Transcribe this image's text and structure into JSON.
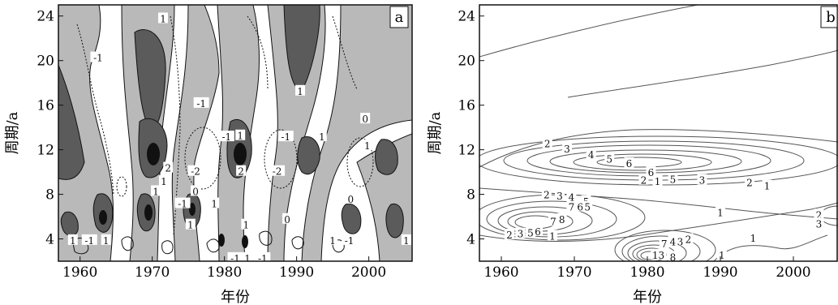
{
  "chart_data": [
    {
      "type": "heatmap",
      "panel_label": "a",
      "xlabel": "年份",
      "ylabel": "周期/a",
      "xlim": [
        1957,
        2006
      ],
      "ylim": [
        2,
        25
      ],
      "xticks": [
        1960,
        1970,
        1980,
        1990,
        2000
      ],
      "yticks": [
        4,
        8,
        12,
        16,
        20,
        24
      ],
      "fill_colors": {
        "neg": "#ffffff",
        "low_pos": "#b9b9b9",
        "high_pos": "#5b5b5b",
        "peak": "#111111"
      },
      "contour_levels": [
        -2,
        -1,
        0,
        1,
        2
      ],
      "contour_labels": [
        {
          "text": "1",
          "x": 1971.5,
          "y": 23.8
        },
        {
          "text": "-1",
          "x": 1962.5,
          "y": 20.3
        },
        {
          "text": "1",
          "x": 1990.5,
          "y": 17.3
        },
        {
          "text": "-1",
          "x": 1976.8,
          "y": 16.2
        },
        {
          "text": "-1",
          "x": 1980.3,
          "y": 13.2
        },
        {
          "text": "1",
          "x": 1982.2,
          "y": 13.3
        },
        {
          "text": "-1",
          "x": 1988.5,
          "y": 13.2
        },
        {
          "text": "1",
          "x": 1993.5,
          "y": 13.2
        },
        {
          "text": "1",
          "x": 1999.8,
          "y": 12.4
        },
        {
          "text": "0",
          "x": 1999.5,
          "y": 14.8
        },
        {
          "text": "2",
          "x": 1972.2,
          "y": 10.4
        },
        {
          "text": "-2",
          "x": 1976.0,
          "y": 10.1
        },
        {
          "text": "2",
          "x": 1982.3,
          "y": 10.1
        },
        {
          "text": "-2",
          "x": 1987.3,
          "y": 10.1
        },
        {
          "text": "1",
          "x": 1971.6,
          "y": 9.2
        },
        {
          "text": "1",
          "x": 1970.5,
          "y": 8.3
        },
        {
          "text": "0",
          "x": 1976.0,
          "y": 8.3
        },
        {
          "text": "-1",
          "x": 1974.2,
          "y": 7.2
        },
        {
          "text": "1",
          "x": 1978.6,
          "y": 7.2
        },
        {
          "text": "0",
          "x": 1997.5,
          "y": 7.6
        },
        {
          "text": "1",
          "x": 1975.3,
          "y": 5.3
        },
        {
          "text": "1",
          "x": 1983.0,
          "y": 5.3
        },
        {
          "text": "0",
          "x": 1988.7,
          "y": 5.8
        },
        {
          "text": "1",
          "x": 1959.0,
          "y": 3.9
        },
        {
          "text": "-1",
          "x": 1961.3,
          "y": 3.9
        },
        {
          "text": "1",
          "x": 1963.6,
          "y": 3.9
        },
        {
          "text": "1",
          "x": 1995.0,
          "y": 3.9
        },
        {
          "text": "-1",
          "x": 1997.3,
          "y": 3.9
        },
        {
          "text": "1",
          "x": 2005.2,
          "y": 3.9
        },
        {
          "text": "-1",
          "x": 1981.5,
          "y": 2.3
        },
        {
          "text": "1",
          "x": 1983.2,
          "y": 2.3
        },
        {
          "text": "-1",
          "x": 1985.3,
          "y": 2.3
        }
      ]
    },
    {
      "type": "heatmap",
      "panel_label": "b",
      "xlabel": "年份",
      "ylabel": "周期/a",
      "xlim": [
        1957,
        2006
      ],
      "ylim": [
        2,
        25
      ],
      "xticks": [
        1960,
        1970,
        1980,
        1990,
        2000
      ],
      "yticks": [
        4,
        8,
        12,
        16,
        20,
        24
      ],
      "contour_levels": [
        1,
        2,
        3,
        4,
        5,
        6,
        7,
        8,
        13
      ],
      "contour_labels": [
        {
          "text": "2",
          "x": 1966.3,
          "y": 12.6
        },
        {
          "text": "3",
          "x": 1969.0,
          "y": 12.1
        },
        {
          "text": "4",
          "x": 1972.3,
          "y": 11.6
        },
        {
          "text": "5",
          "x": 1974.8,
          "y": 11.2
        },
        {
          "text": "6",
          "x": 1977.5,
          "y": 10.8
        },
        {
          "text": "6",
          "x": 1980.5,
          "y": 10.0
        },
        {
          "text": "2",
          "x": 1979.5,
          "y": 9.3
        },
        {
          "text": "1",
          "x": 1981.4,
          "y": 9.2
        },
        {
          "text": "5",
          "x": 1983.5,
          "y": 9.4
        },
        {
          "text": "3",
          "x": 1987.5,
          "y": 9.3
        },
        {
          "text": "2",
          "x": 1994.0,
          "y": 9.1
        },
        {
          "text": "1",
          "x": 1996.4,
          "y": 8.8
        },
        {
          "text": "2",
          "x": 1966.2,
          "y": 8.0
        },
        {
          "text": "3",
          "x": 1968.0,
          "y": 7.9
        },
        {
          "text": "4",
          "x": 1969.6,
          "y": 7.8
        },
        {
          "text": "5",
          "x": 1971.6,
          "y": 7.4
        },
        {
          "text": "7",
          "x": 1969.6,
          "y": 6.9
        },
        {
          "text": "6",
          "x": 1970.8,
          "y": 6.9
        },
        {
          "text": "5",
          "x": 1971.8,
          "y": 6.9
        },
        {
          "text": "7",
          "x": 1967.1,
          "y": 5.6
        },
        {
          "text": "8",
          "x": 1968.3,
          "y": 5.8
        },
        {
          "text": "2",
          "x": 1961.1,
          "y": 4.4
        },
        {
          "text": "3",
          "x": 1962.6,
          "y": 4.5
        },
        {
          "text": "5",
          "x": 1964.0,
          "y": 4.6
        },
        {
          "text": "6",
          "x": 1965.0,
          "y": 4.7
        },
        {
          "text": "1",
          "x": 1967.0,
          "y": 4.3
        },
        {
          "text": "1",
          "x": 1990.0,
          "y": 6.4
        },
        {
          "text": "2",
          "x": 2003.5,
          "y": 6.2
        },
        {
          "text": "3",
          "x": 2003.5,
          "y": 5.4
        },
        {
          "text": "1",
          "x": 1994.5,
          "y": 4.1
        },
        {
          "text": "7",
          "x": 1982.3,
          "y": 3.6
        },
        {
          "text": "4",
          "x": 1983.5,
          "y": 3.8
        },
        {
          "text": "3",
          "x": 1984.5,
          "y": 3.8
        },
        {
          "text": "2",
          "x": 1985.6,
          "y": 4.0
        },
        {
          "text": "13",
          "x": 1981.5,
          "y": 2.6
        },
        {
          "text": "8",
          "x": 1983.5,
          "y": 2.4
        },
        {
          "text": "1",
          "x": 1990.2,
          "y": 2.6
        }
      ]
    }
  ]
}
